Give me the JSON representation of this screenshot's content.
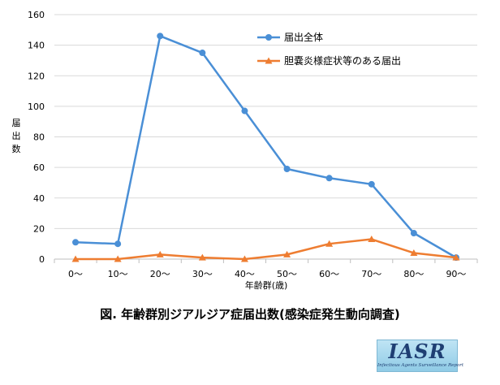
{
  "chart_data": {
    "type": "line",
    "categories": [
      "0～",
      "10～",
      "20～",
      "30～",
      "40～",
      "50～",
      "60～",
      "70～",
      "80～",
      "90～"
    ],
    "series": [
      {
        "name": "届出全体",
        "values": [
          11,
          10,
          146,
          135,
          97,
          59,
          53,
          49,
          17,
          1
        ],
        "color": "#4a8fd6",
        "marker": "circle"
      },
      {
        "name": "胆嚢炎様症状等のある届出",
        "values": [
          0,
          0,
          3,
          1,
          0,
          3,
          10,
          13,
          4,
          1
        ],
        "color": "#ee7d31",
        "marker": "triangle"
      }
    ],
    "xlabel": "年齢群(歳)",
    "ylabel": "届出数",
    "ylim": [
      0,
      160
    ],
    "yticks": [
      0,
      20,
      40,
      60,
      80,
      100,
      120,
      140,
      160
    ],
    "grid": "horizontal",
    "legend": "top-right"
  },
  "caption": "図. 年齢群別ジアルジア症届出数(感染症発生動向調査)",
  "logo": {
    "main": "IASR",
    "sub": "Infectious Agents Surveillance Report"
  }
}
